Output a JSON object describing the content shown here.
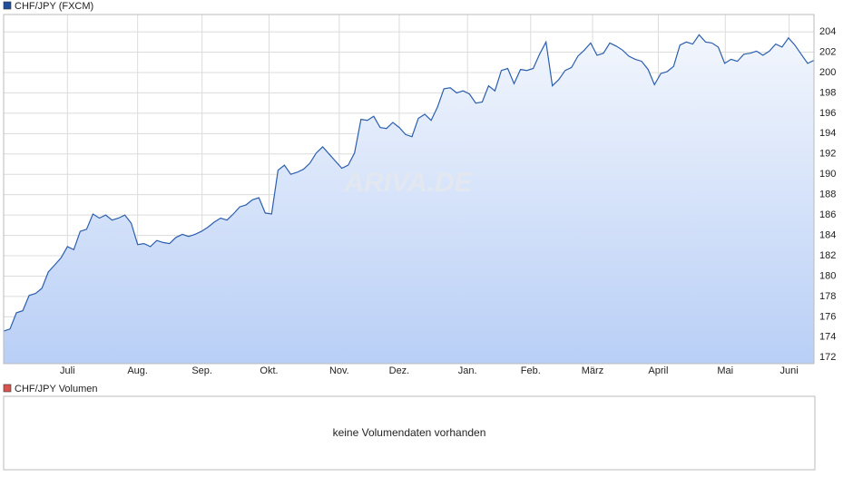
{
  "chart_data": {
    "type": "line",
    "title": "CHF/JPY (FXCM)",
    "legend_color": "#1f4e9c",
    "watermark": "ARIVA.DE",
    "series": [
      {
        "name": "CHF/JPY",
        "color": "#2b5fae",
        "values": [
          174.6,
          174.8,
          176.4,
          176.6,
          178.1,
          178.3,
          178.8,
          180.4,
          181.1,
          181.8,
          182.9,
          182.6,
          184.4,
          184.6,
          186.1,
          185.7,
          186.0,
          185.5,
          185.7,
          186.0,
          185.2,
          183.1,
          183.2,
          182.9,
          183.5,
          183.3,
          183.2,
          183.8,
          184.1,
          183.9,
          184.1,
          184.4,
          184.8,
          185.3,
          185.7,
          185.5,
          186.1,
          186.8,
          187.0,
          187.5,
          187.7,
          186.2,
          186.1,
          190.4,
          190.9,
          190.0,
          190.2,
          190.5,
          191.1,
          192.1,
          192.7,
          192.0,
          191.3,
          190.6,
          190.9,
          192.1,
          195.4,
          195.3,
          195.7,
          194.6,
          194.5,
          195.1,
          194.6,
          193.9,
          193.7,
          195.5,
          195.9,
          195.3,
          196.6,
          198.4,
          198.5,
          198.0,
          198.2,
          197.9,
          197.0,
          197.1,
          198.7,
          198.2,
          200.2,
          200.4,
          198.9,
          200.3,
          200.2,
          200.4,
          201.8,
          203.0,
          198.7,
          199.3,
          200.2,
          200.5,
          201.6,
          202.2,
          202.9,
          201.7,
          201.9,
          202.9,
          202.6,
          202.2,
          201.6,
          201.3,
          201.1,
          200.3,
          198.8,
          199.9,
          200.1,
          200.6,
          202.7,
          203.0,
          202.8,
          203.7,
          203.0,
          202.9,
          202.5,
          200.9,
          201.3,
          201.1,
          201.8,
          201.9,
          202.1,
          201.7,
          202.1,
          202.8,
          202.5,
          203.4,
          202.7,
          201.8,
          200.9,
          201.2
        ]
      }
    ],
    "xlim": [
      0,
      127
    ],
    "xticks": [
      {
        "value": 10,
        "label": "Juli"
      },
      {
        "value": 21,
        "label": "Aug."
      },
      {
        "value": 31.1,
        "label": "Sep."
      },
      {
        "value": 41.6,
        "label": "Okt."
      },
      {
        "value": 52.6,
        "label": "Nov."
      },
      {
        "value": 62,
        "label": "Dez."
      },
      {
        "value": 72.7,
        "label": "Jan."
      },
      {
        "value": 82.6,
        "label": "Feb."
      },
      {
        "value": 92.3,
        "label": "März"
      },
      {
        "value": 102.6,
        "label": "April"
      },
      {
        "value": 113.1,
        "label": "Mai"
      },
      {
        "value": 123.1,
        "label": "Juni"
      }
    ],
    "ylim": [
      171.4,
      205.7
    ],
    "yticks": [
      172,
      174,
      176,
      178,
      180,
      182,
      184,
      186,
      188,
      190,
      192,
      194,
      196,
      198,
      200,
      202,
      204
    ],
    "grid": true
  },
  "volume_panel": {
    "title": "CHF/JPY Volumen",
    "legend_color": "#d9534f",
    "message": "keine Volumendaten vorhanden"
  }
}
